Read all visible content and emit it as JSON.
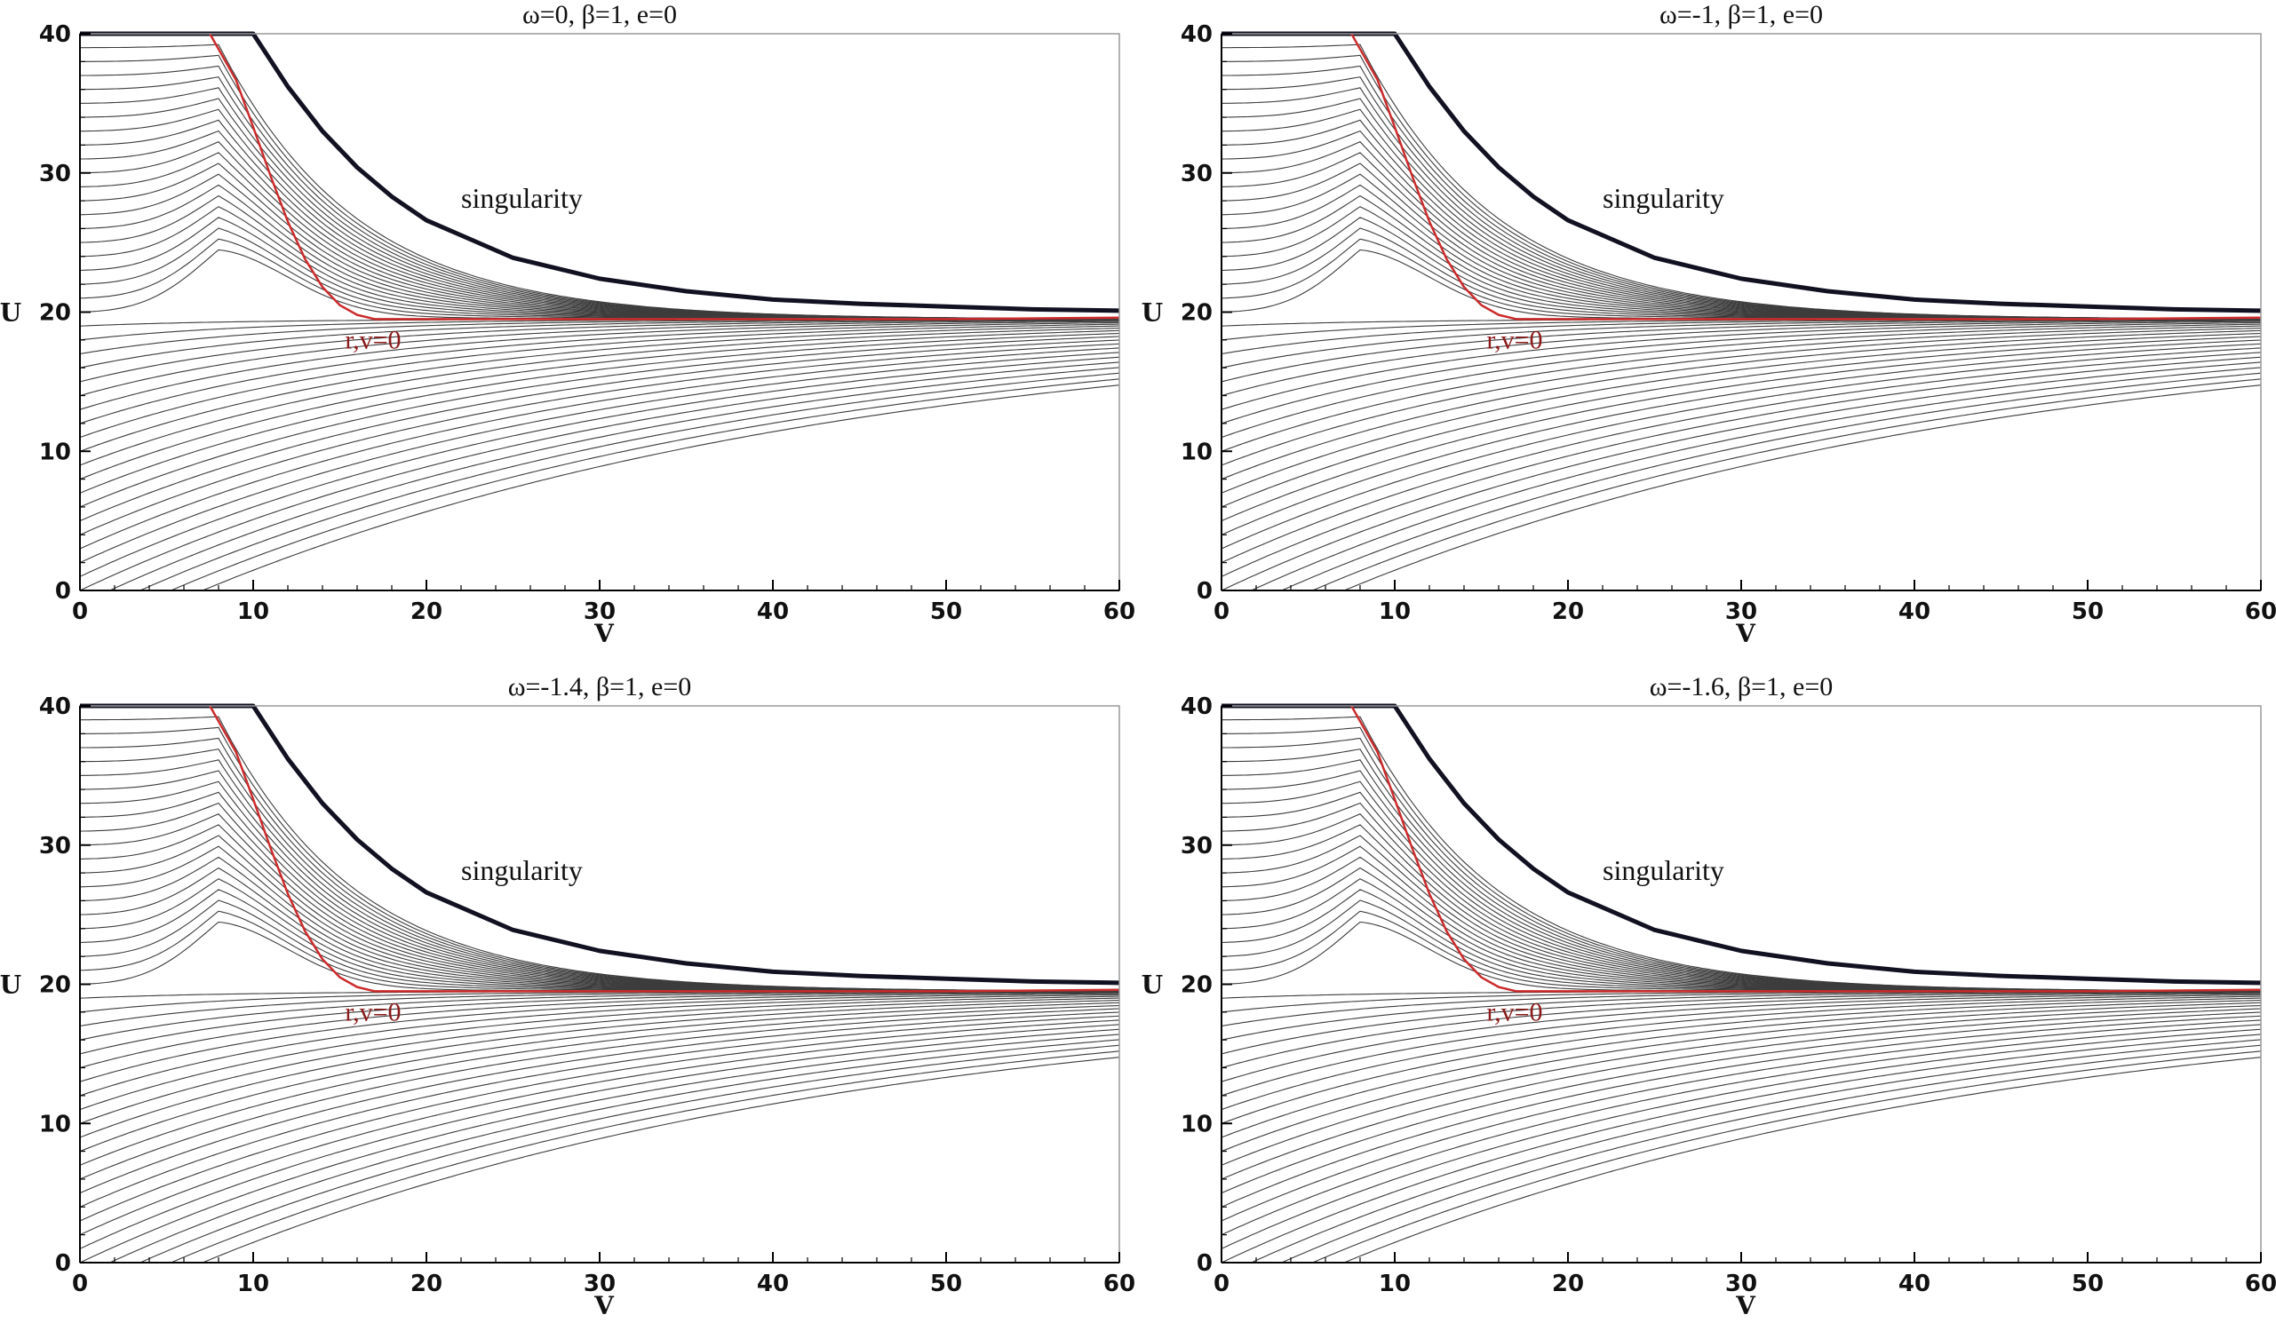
{
  "chart_data": [
    {
      "type": "line",
      "title": "ω=0,   β=1,   e=0",
      "xlabel": "V",
      "ylabel": "U",
      "xlim": [
        0,
        60
      ],
      "ylim": [
        0,
        40
      ],
      "xticks": [
        "0",
        "10",
        "20",
        "30",
        "40",
        "50",
        "60"
      ],
      "yticks": [
        "0",
        "10",
        "20",
        "30",
        "40"
      ],
      "annotations": {
        "singularity": "singularity",
        "apparent_horizon": "r,v=0"
      },
      "singularity_curve": {
        "x": [
          0,
          10,
          12,
          14,
          16,
          18,
          20,
          25,
          30,
          35,
          40,
          45,
          50,
          55,
          60
        ],
        "y": [
          40,
          40,
          36.2,
          33.0,
          30.4,
          28.3,
          26.6,
          23.9,
          22.4,
          21.5,
          20.9,
          20.6,
          20.4,
          20.2,
          20.1
        ]
      },
      "apparent_horizon_curve": {
        "x": [
          7.5,
          9,
          10,
          11,
          12,
          13,
          14,
          15,
          16,
          17,
          20,
          30,
          40,
          50,
          60
        ],
        "y": [
          40,
          36.7,
          33.3,
          29.8,
          26.5,
          23.8,
          21.8,
          20.5,
          19.8,
          19.5,
          19.5,
          19.5,
          19.5,
          19.5,
          19.6
        ]
      },
      "colors": {
        "contours": "#3c3c3c",
        "singularity": "#111122",
        "apparent_horizon": "#cc2b2b",
        "label_red": "#8b1a1a"
      }
    },
    {
      "type": "line",
      "title": "ω=-1,   β=1,   e=0",
      "xlabel": "V",
      "ylabel": "U",
      "xlim": [
        0,
        60
      ],
      "ylim": [
        0,
        40
      ],
      "xticks": [
        "0",
        "10",
        "20",
        "30",
        "40",
        "50",
        "60"
      ],
      "yticks": [
        "0",
        "10",
        "20",
        "30",
        "40"
      ],
      "annotations": {
        "singularity": "singularity",
        "apparent_horizon": "r,v=0"
      },
      "singularity_curve": {
        "x": [
          0,
          10,
          12,
          14,
          16,
          18,
          20,
          25,
          30,
          35,
          40,
          45,
          50,
          55,
          60
        ],
        "y": [
          40,
          40,
          36.2,
          33.0,
          30.4,
          28.3,
          26.6,
          23.9,
          22.4,
          21.5,
          20.9,
          20.6,
          20.4,
          20.2,
          20.1
        ]
      },
      "apparent_horizon_curve": {
        "x": [
          7.5,
          9,
          10,
          11,
          12,
          13,
          14,
          15,
          16,
          17,
          20,
          30,
          40,
          50,
          60
        ],
        "y": [
          40,
          36.7,
          33.3,
          29.8,
          26.5,
          23.8,
          21.8,
          20.5,
          19.8,
          19.5,
          19.5,
          19.5,
          19.5,
          19.5,
          19.6
        ]
      },
      "colors": {
        "contours": "#3c3c3c",
        "singularity": "#111122",
        "apparent_horizon": "#cc2b2b",
        "label_red": "#8b1a1a"
      }
    },
    {
      "type": "line",
      "title": "ω=-1.4,   β=1,   e=0",
      "xlabel": "V",
      "ylabel": "U",
      "xlim": [
        0,
        60
      ],
      "ylim": [
        0,
        40
      ],
      "xticks": [
        "0",
        "10",
        "20",
        "30",
        "40",
        "50",
        "60"
      ],
      "yticks": [
        "0",
        "10",
        "20",
        "30",
        "40"
      ],
      "annotations": {
        "singularity": "singularity",
        "apparent_horizon": "r,v=0"
      },
      "singularity_curve": {
        "x": [
          0,
          10,
          12,
          14,
          16,
          18,
          20,
          25,
          30,
          35,
          40,
          45,
          50,
          55,
          60
        ],
        "y": [
          40,
          40,
          36.2,
          33.0,
          30.4,
          28.3,
          26.6,
          23.9,
          22.4,
          21.5,
          20.9,
          20.6,
          20.4,
          20.2,
          20.1
        ]
      },
      "apparent_horizon_curve": {
        "x": [
          7.5,
          9,
          10,
          11,
          12,
          13,
          14,
          15,
          16,
          17,
          20,
          30,
          40,
          50,
          60
        ],
        "y": [
          40,
          36.7,
          33.3,
          29.8,
          26.5,
          23.8,
          21.8,
          20.5,
          19.8,
          19.5,
          19.5,
          19.5,
          19.5,
          19.5,
          19.6
        ]
      },
      "colors": {
        "contours": "#3c3c3c",
        "singularity": "#111122",
        "apparent_horizon": "#cc2b2b",
        "label_red": "#8b1a1a"
      }
    },
    {
      "type": "line",
      "title": "ω=-1.6,   β=1,   e=0",
      "xlabel": "V",
      "ylabel": "U",
      "xlim": [
        0,
        60
      ],
      "ylim": [
        0,
        40
      ],
      "xticks": [
        "0",
        "10",
        "20",
        "30",
        "40",
        "50",
        "60"
      ],
      "yticks": [
        "0",
        "10",
        "20",
        "30",
        "40"
      ],
      "annotations": {
        "singularity": "singularity",
        "apparent_horizon": "r,v=0"
      },
      "singularity_curve": {
        "x": [
          0,
          10,
          12,
          14,
          16,
          18,
          20,
          25,
          30,
          35,
          40,
          45,
          50,
          55,
          60
        ],
        "y": [
          40,
          40,
          36.2,
          33.0,
          30.4,
          28.3,
          26.6,
          23.9,
          22.4,
          21.5,
          20.9,
          20.6,
          20.4,
          20.2,
          20.1
        ]
      },
      "apparent_horizon_curve": {
        "x": [
          7.5,
          9,
          10,
          11,
          12,
          13,
          14,
          15,
          16,
          17,
          20,
          30,
          40,
          50,
          60
        ],
        "y": [
          40,
          36.7,
          33.3,
          29.8,
          26.5,
          23.8,
          21.8,
          20.5,
          19.8,
          19.5,
          19.5,
          19.5,
          19.5,
          19.5,
          19.6
        ]
      },
      "colors": {
        "contours": "#3c3c3c",
        "singularity": "#111122",
        "apparent_horizon": "#cc2b2b",
        "label_red": "#8b1a1a"
      }
    }
  ]
}
